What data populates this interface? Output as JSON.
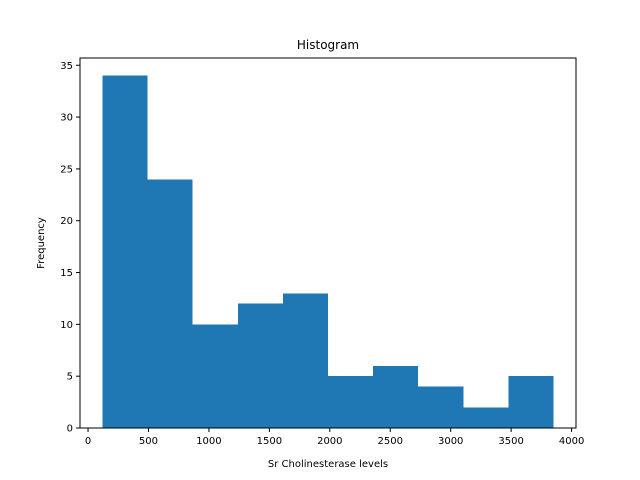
{
  "chart_data": {
    "type": "bar",
    "subtype": "histogram",
    "title": "Histogram",
    "xlabel": "Sr Cholinesterase levels",
    "ylabel": "Frequency",
    "bar_color": "#1f77b4",
    "bin_edges": [
      120,
      493,
      866,
      1239,
      1612,
      1985,
      2358,
      2731,
      3104,
      3477,
      3850
    ],
    "values": [
      34,
      24,
      10,
      12,
      13,
      5,
      6,
      4,
      2,
      5
    ],
    "xlim": [
      -66.5,
      4036.5
    ],
    "ylim": [
      0,
      35.7
    ],
    "xticks": [
      0,
      500,
      1000,
      1500,
      2000,
      2500,
      3000,
      3500,
      4000
    ],
    "yticks": [
      0,
      5,
      10,
      15,
      20,
      25,
      30,
      35
    ],
    "grid": false,
    "legend": "none"
  }
}
